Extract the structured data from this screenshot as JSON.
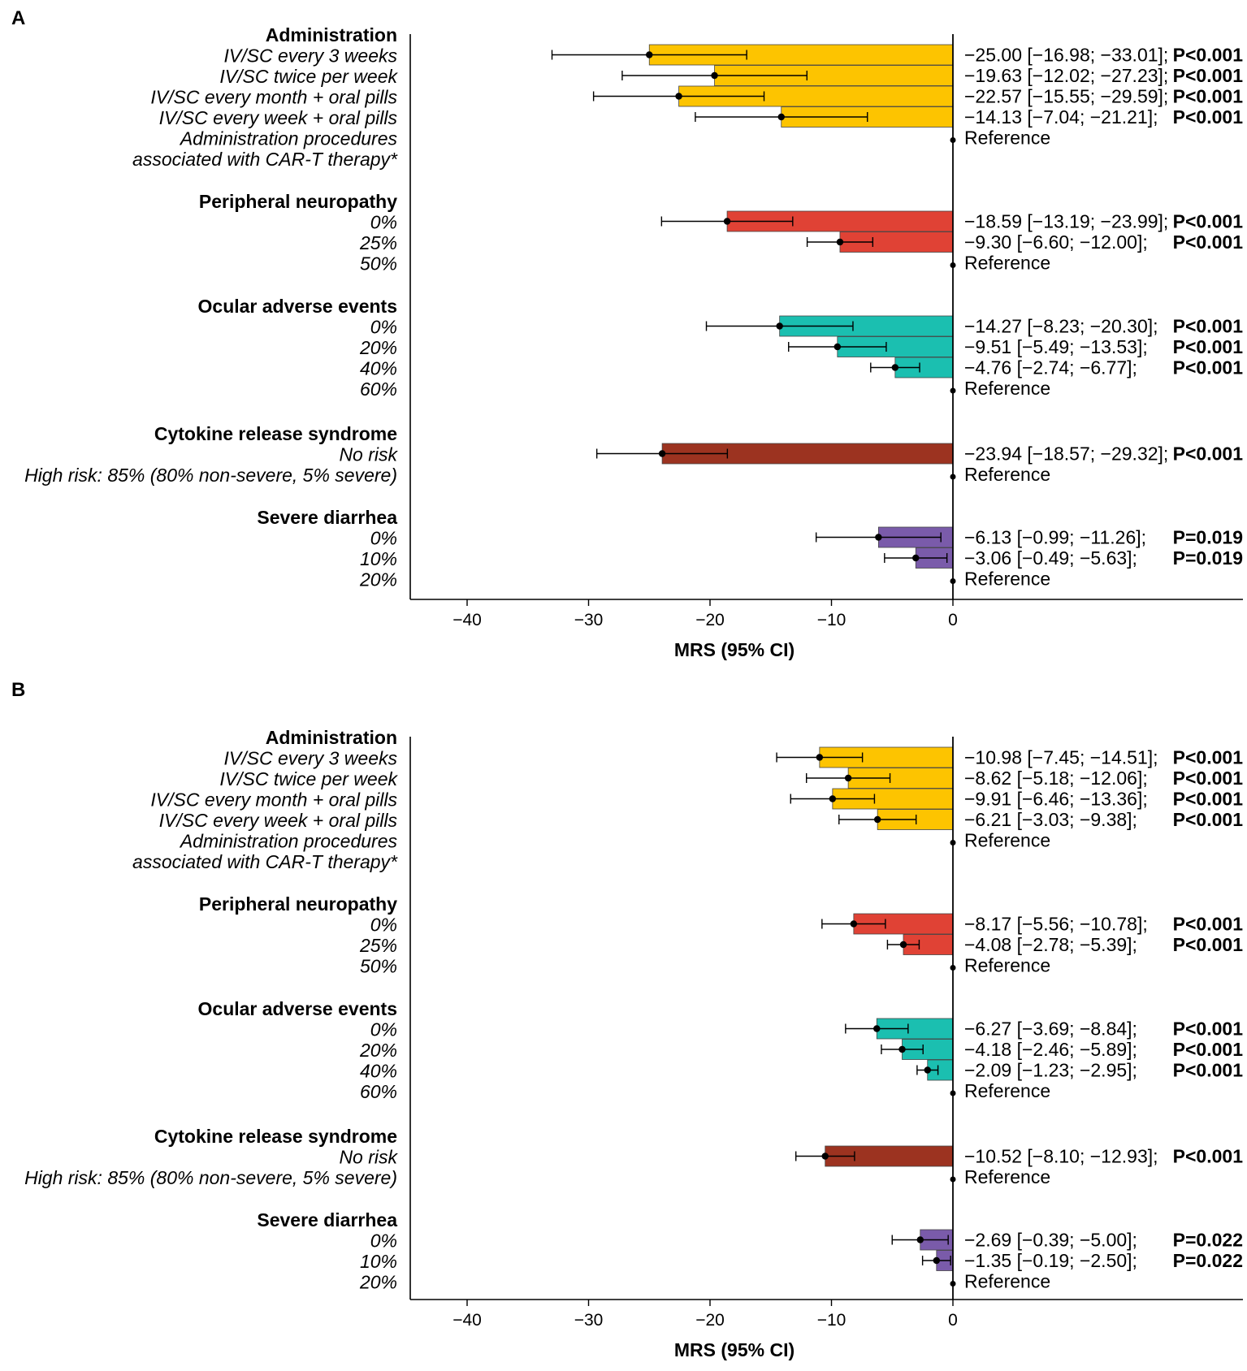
{
  "colors": {
    "Administration": "#FDC400",
    "Peripheral neuropathy": "#E04235",
    "Ocular adverse events": "#1BBFB0",
    "Cytokine release syndrome": "#9C3320",
    "Severe diarrhea": "#7A5BAA"
  },
  "chart_data": [
    {
      "panel": "A",
      "type": "bar",
      "orientation": "horizontal",
      "xlabel": "MRS (95% CI)",
      "xlim": [
        -45,
        0
      ],
      "xticks": [
        "−40",
        "−30",
        "−20",
        "−10",
        "0"
      ],
      "xtick_values": [
        -40,
        -30,
        -20,
        -10,
        0
      ],
      "reference_label": "Reference",
      "groups": [
        {
          "name": "Administration",
          "levels": [
            "IV/SC every 3 weeks",
            "IV/SC twice per week",
            "IV/SC every month + oral pills",
            "IV/SC every week + oral pills",
            "Administration procedures",
            "associated with CAR-T therapy*"
          ],
          "estimates": [
            {
              "mrs": -25.0,
              "ci": [
                -16.98,
                -33.01
              ],
              "text": "−25.00 [−16.98; −33.01];",
              "p": "P<0.001"
            },
            {
              "mrs": -19.63,
              "ci": [
                -12.02,
                -27.23
              ],
              "text": "−19.63 [−12.02; −27.23];",
              "p": "P<0.001"
            },
            {
              "mrs": -22.57,
              "ci": [
                -15.55,
                -29.59
              ],
              "text": "−22.57 [−15.55; −29.59];",
              "p": "P<0.001"
            },
            {
              "mrs": -14.13,
              "ci": [
                -7.04,
                -21.21
              ],
              "text": "−14.13 [−7.04; −21.21];",
              "p": "P<0.001"
            }
          ]
        },
        {
          "name": "Peripheral neuropathy",
          "levels": [
            "0%",
            "25%",
            "50%"
          ],
          "estimates": [
            {
              "mrs": -18.59,
              "ci": [
                -13.19,
                -23.99
              ],
              "text": "−18.59 [−13.19; −23.99];",
              "p": "P<0.001"
            },
            {
              "mrs": -9.3,
              "ci": [
                -6.6,
                -12.0
              ],
              "text": "−9.30 [−6.60; −12.00];",
              "p": "P<0.001"
            }
          ]
        },
        {
          "name": "Ocular adverse events",
          "levels": [
            "0%",
            "20%",
            "40%",
            "60%"
          ],
          "estimates": [
            {
              "mrs": -14.27,
              "ci": [
                -8.23,
                -20.3
              ],
              "text": "−14.27 [−8.23; −20.30];",
              "p": "P<0.001"
            },
            {
              "mrs": -9.51,
              "ci": [
                -5.49,
                -13.53
              ],
              "text": "−9.51 [−5.49; −13.53];",
              "p": "P<0.001"
            },
            {
              "mrs": -4.76,
              "ci": [
                -2.74,
                -6.77
              ],
              "text": "−4.76 [−2.74; −6.77];",
              "p": "P<0.001"
            }
          ]
        },
        {
          "name": "Cytokine release syndrome",
          "levels": [
            "No risk",
            "High risk: 85% (80% non-severe, 5% severe)"
          ],
          "estimates": [
            {
              "mrs": -23.94,
              "ci": [
                -18.57,
                -29.32
              ],
              "text": "−23.94 [−18.57; −29.32];",
              "p": "P<0.001"
            }
          ]
        },
        {
          "name": "Severe diarrhea",
          "levels": [
            "0%",
            "10%",
            "20%"
          ],
          "estimates": [
            {
              "mrs": -6.13,
              "ci": [
                -0.99,
                -11.26
              ],
              "text": "−6.13 [−0.99; −11.26];",
              "p": "P=0.019"
            },
            {
              "mrs": -3.06,
              "ci": [
                -0.49,
                -5.63
              ],
              "text": "−3.06 [−0.49; −5.63];",
              "p": "P=0.019"
            }
          ]
        }
      ]
    },
    {
      "panel": "B",
      "type": "bar",
      "orientation": "horizontal",
      "xlabel": "MRS (95% CI)",
      "xlim": [
        -45,
        0
      ],
      "xticks": [
        "−40",
        "−30",
        "−20",
        "−10",
        "0"
      ],
      "xtick_values": [
        -40,
        -30,
        -20,
        -10,
        0
      ],
      "reference_label": "Reference",
      "groups": [
        {
          "name": "Administration",
          "levels": [
            "IV/SC every 3 weeks",
            "IV/SC twice per week",
            "IV/SC every month + oral pills",
            "IV/SC every week + oral pills",
            "Administration procedures",
            "associated with CAR-T therapy*"
          ],
          "estimates": [
            {
              "mrs": -10.98,
              "ci": [
                -7.45,
                -14.51
              ],
              "text": "−10.98 [−7.45; −14.51];",
              "p": "P<0.001"
            },
            {
              "mrs": -8.62,
              "ci": [
                -5.18,
                -12.06
              ],
              "text": "−8.62 [−5.18; −12.06];",
              "p": "P<0.001"
            },
            {
              "mrs": -9.91,
              "ci": [
                -6.46,
                -13.36
              ],
              "text": "−9.91 [−6.46; −13.36];",
              "p": "P<0.001"
            },
            {
              "mrs": -6.21,
              "ci": [
                -3.03,
                -9.38
              ],
              "text": "−6.21 [−3.03; −9.38];",
              "p": "P<0.001"
            }
          ]
        },
        {
          "name": "Peripheral neuropathy",
          "levels": [
            "0%",
            "25%",
            "50%"
          ],
          "estimates": [
            {
              "mrs": -8.17,
              "ci": [
                -5.56,
                -10.78
              ],
              "text": "−8.17 [−5.56; −10.78];",
              "p": "P<0.001"
            },
            {
              "mrs": -4.08,
              "ci": [
                -2.78,
                -5.39
              ],
              "text": "−4.08 [−2.78; −5.39];",
              "p": "P<0.001"
            }
          ]
        },
        {
          "name": "Ocular adverse events",
          "levels": [
            "0%",
            "20%",
            "40%",
            "60%"
          ],
          "estimates": [
            {
              "mrs": -6.27,
              "ci": [
                -3.69,
                -8.84
              ],
              "text": "−6.27 [−3.69; −8.84];",
              "p": "P<0.001"
            },
            {
              "mrs": -4.18,
              "ci": [
                -2.46,
                -5.89
              ],
              "text": "−4.18 [−2.46; −5.89];",
              "p": "P<0.001"
            },
            {
              "mrs": -2.09,
              "ci": [
                -1.23,
                -2.95
              ],
              "text": "−2.09 [−1.23; −2.95];",
              "p": "P<0.001"
            }
          ]
        },
        {
          "name": "Cytokine release syndrome",
          "levels": [
            "No risk",
            "High risk: 85% (80% non-severe, 5% severe)"
          ],
          "estimates": [
            {
              "mrs": -10.52,
              "ci": [
                -8.1,
                -12.93
              ],
              "text": "−10.52 [−8.10; −12.93];",
              "p": "P<0.001"
            }
          ]
        },
        {
          "name": "Severe diarrhea",
          "levels": [
            "0%",
            "10%",
            "20%"
          ],
          "estimates": [
            {
              "mrs": -2.69,
              "ci": [
                -0.39,
                -5.0
              ],
              "text": "−2.69 [−0.39; −5.00];",
              "p": "P=0.022"
            },
            {
              "mrs": -1.35,
              "ci": [
                -0.19,
                -2.5
              ],
              "text": "−1.35 [−0.19; −2.50];",
              "p": "P=0.022"
            }
          ]
        }
      ]
    }
  ]
}
